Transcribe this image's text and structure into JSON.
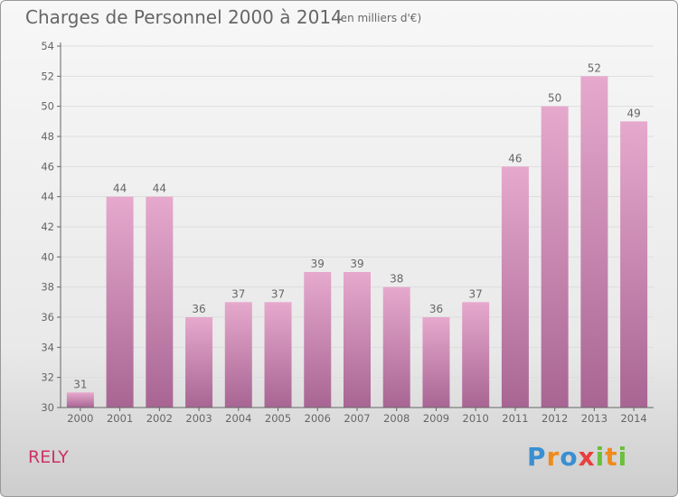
{
  "title": "Charges de Personnel 2000 à 2014",
  "unit": "(en milliers d'€)",
  "place": "RELY",
  "logo": {
    "letters": [
      {
        "ch": "P",
        "color": "#3a8fd1"
      },
      {
        "ch": "r",
        "color": "#f08a1c"
      },
      {
        "ch": "o",
        "color": "#3a8fd1"
      },
      {
        "ch": "x",
        "color": "#e83f3f"
      },
      {
        "ch": "i",
        "color": "#6abf3b"
      },
      {
        "ch": "t",
        "color": "#f08a1c"
      },
      {
        "ch": "i",
        "color": "#6abf3b"
      }
    ]
  },
  "colors": {
    "bar_top": "#e6a9cd",
    "bar_bottom": "#a86593",
    "axis": "#666666",
    "text": "#666666",
    "grid": "#dddddd"
  },
  "chart_data": {
    "type": "bar",
    "categories": [
      "2000",
      "2001",
      "2002",
      "2003",
      "2004",
      "2005",
      "2006",
      "2007",
      "2008",
      "2009",
      "2010",
      "2011",
      "2012",
      "2013",
      "2014"
    ],
    "values": [
      31,
      44,
      44,
      36,
      37,
      37,
      39,
      39,
      38,
      36,
      37,
      46,
      50,
      52,
      49
    ],
    "ylim": [
      30,
      54
    ],
    "yticks": [
      30,
      32,
      34,
      36,
      38,
      40,
      42,
      44,
      46,
      48,
      50,
      52,
      54
    ],
    "grid": true
  }
}
